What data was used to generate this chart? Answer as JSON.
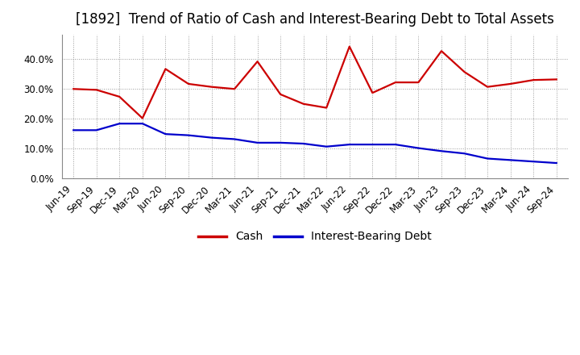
{
  "title": "[1892]  Trend of Ratio of Cash and Interest-Bearing Debt to Total Assets",
  "labels": [
    "Jun-19",
    "Sep-19",
    "Dec-19",
    "Mar-20",
    "Jun-20",
    "Sep-20",
    "Dec-20",
    "Mar-21",
    "Jun-21",
    "Sep-21",
    "Dec-21",
    "Mar-22",
    "Jun-22",
    "Sep-22",
    "Dec-22",
    "Mar-23",
    "Jun-23",
    "Sep-23",
    "Dec-23",
    "Mar-24",
    "Jun-24",
    "Sep-24"
  ],
  "cash": [
    0.298,
    0.295,
    0.272,
    0.2,
    0.365,
    0.315,
    0.305,
    0.298,
    0.39,
    0.28,
    0.248,
    0.235,
    0.44,
    0.285,
    0.32,
    0.32,
    0.425,
    0.355,
    0.305,
    0.315,
    0.328,
    0.33
  ],
  "ibd": [
    0.16,
    0.16,
    0.182,
    0.182,
    0.147,
    0.143,
    0.135,
    0.13,
    0.118,
    0.118,
    0.115,
    0.105,
    0.112,
    0.112,
    0.112,
    0.1,
    0.09,
    0.082,
    0.065,
    0.06,
    0.055,
    0.05
  ],
  "cash_color": "#cc0000",
  "ibd_color": "#0000cc",
  "ylim": [
    0.0,
    0.48
  ],
  "yticks": [
    0.0,
    0.1,
    0.2,
    0.3,
    0.4
  ],
  "grid_color": "#999999",
  "bg_color": "#ffffff",
  "plot_bg": "#ffffff",
  "title_fontsize": 12,
  "tick_fontsize": 8.5,
  "legend_labels": [
    "Cash",
    "Interest-Bearing Debt"
  ]
}
